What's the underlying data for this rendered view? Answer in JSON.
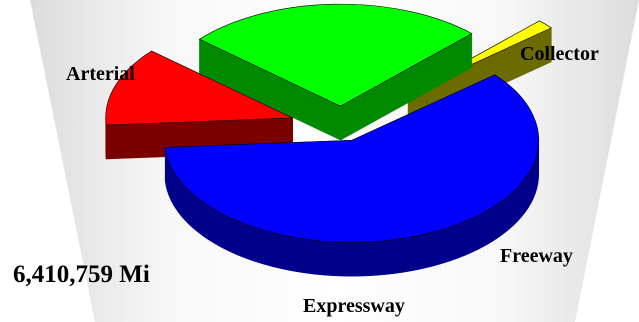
{
  "chart_data": {
    "type": "pie",
    "style": "3d-exploded",
    "categories": [
      "Arterial",
      "Collector",
      "Freeway",
      "Expressway"
    ],
    "values": [
      60.0,
      12.5,
      26.0,
      1.5
    ],
    "colors": {
      "Arterial": "#0000ff",
      "Collector": "#ff0000",
      "Freeway": "#00ff00",
      "Expressway": "#ffff00"
    },
    "side_colors": {
      "Arterial": "#00008b",
      "Collector": "#7a0000",
      "Freeway": "#008a00",
      "Expressway": "#6b6b00"
    },
    "total_label": "6,410,759 Mi",
    "legend": "none"
  }
}
